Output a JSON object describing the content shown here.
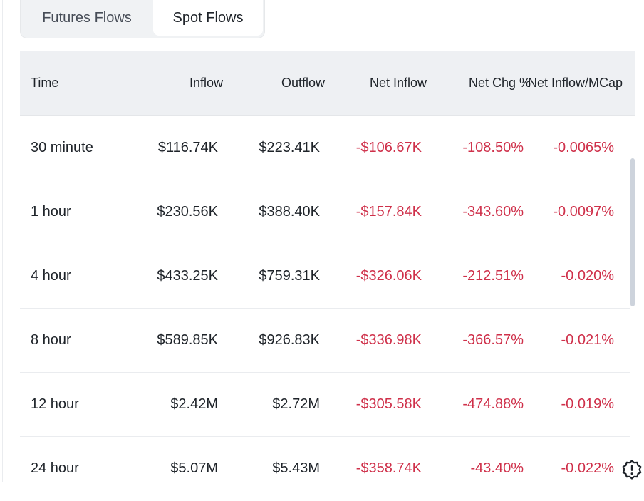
{
  "tabs": {
    "futures_label": "Futures Flows",
    "spot_label": "Spot Flows",
    "active": "Spot Flows"
  },
  "table": {
    "headers": {
      "time": "Time",
      "inflow": "Inflow",
      "outflow": "Outflow",
      "net_inflow": "Net Inflow",
      "net_chg": "Net Chg %",
      "net_inflow_mcap": "Net Inflow/MCap"
    },
    "rows": [
      {
        "time": "30 minute",
        "inflow": "$116.74K",
        "outflow": "$223.41K",
        "net_inflow": "-$106.67K",
        "net_chg": "-108.50%",
        "net_inflow_mcap": "-0.0065%"
      },
      {
        "time": "1 hour",
        "inflow": "$230.56K",
        "outflow": "$388.40K",
        "net_inflow": "-$157.84K",
        "net_chg": "-343.60%",
        "net_inflow_mcap": "-0.0097%"
      },
      {
        "time": "4 hour",
        "inflow": "$433.25K",
        "outflow": "$759.31K",
        "net_inflow": "-$326.06K",
        "net_chg": "-212.51%",
        "net_inflow_mcap": "-0.020%"
      },
      {
        "time": "8 hour",
        "inflow": "$589.85K",
        "outflow": "$926.83K",
        "net_inflow": "-$336.98K",
        "net_chg": "-366.57%",
        "net_inflow_mcap": "-0.021%"
      },
      {
        "time": "12 hour",
        "inflow": "$2.42M",
        "outflow": "$2.72M",
        "net_inflow": "-$305.58K",
        "net_chg": "-474.88%",
        "net_inflow_mcap": "-0.019%"
      },
      {
        "time": "24 hour",
        "inflow": "$5.07M",
        "outflow": "$5.43M",
        "net_inflow": "-$358.74K",
        "net_chg": "-43.40%",
        "net_inflow_mcap": "-0.022%"
      }
    ]
  },
  "colors": {
    "negative": "#cf304a",
    "text": "#1e2329",
    "header_bg": "#eef0f3"
  },
  "icons": {
    "help": "alert-badge-icon"
  }
}
